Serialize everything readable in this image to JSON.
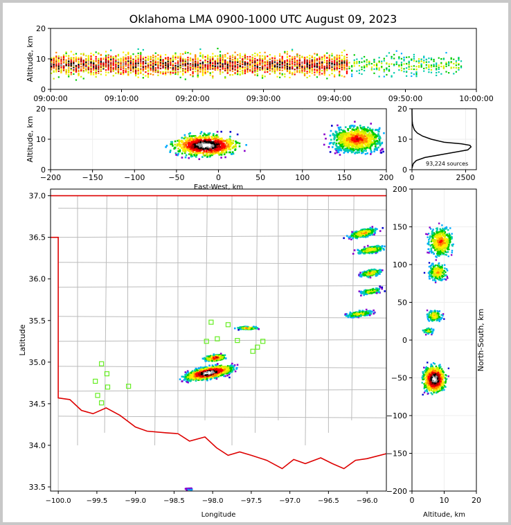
{
  "title": "Oklahoma LMA 0900-1000 UTC August 09, 2023",
  "source_count_label": "93,224 sources",
  "colors": {
    "state_border": "#dd0000",
    "county_lines": "#bbbbbb",
    "station_marker": "#66ee22",
    "density_scale": [
      "#0000cc",
      "#8800cc",
      "#00aaff",
      "#00ccaa",
      "#00cc00",
      "#ccee00",
      "#ffee00",
      "#ff8800",
      "#ff0000",
      "#aa0000",
      "#000000",
      "#999999",
      "#ffffff"
    ]
  },
  "chart_data": [
    {
      "id": "time-height",
      "type": "heatmap",
      "xlabel": "",
      "ylabel": "Altitude, km",
      "x_ticks": [
        "09:00:00",
        "09:10:00",
        "09:20:00",
        "09:30:00",
        "09:40:00",
        "09:50:00",
        "10:00:00"
      ],
      "xlim_minutes": [
        0,
        60
      ],
      "ylim": [
        0,
        20
      ],
      "y_ticks": [
        0,
        10,
        20
      ],
      "description_values": {
        "bulk_altitude_km": [
          4,
          12
        ],
        "activity_end_minute": 58
      }
    },
    {
      "id": "east-west-altitude",
      "type": "heatmap",
      "xlabel": "East-West, km",
      "ylabel": "Altitude, km",
      "xlim": [
        -200,
        200
      ],
      "ylim": [
        0,
        20
      ],
      "x_ticks": [
        -200,
        -150,
        -100,
        -50,
        0,
        50,
        100,
        150,
        200
      ],
      "y_ticks": [
        0,
        10,
        20
      ],
      "clusters": [
        {
          "x_center": -15,
          "x_halfwidth": 45,
          "alt_center": 8,
          "alt_halfwidth": 4,
          "peak": 1.0
        },
        {
          "x_center": 165,
          "x_halfwidth": 35,
          "alt_center": 10,
          "alt_halfwidth": 5,
          "peak": 0.7
        }
      ]
    },
    {
      "id": "altitude-histogram",
      "type": "line",
      "xlabel": "",
      "ylabel": "",
      "xlim": [
        0,
        3000
      ],
      "ylim": [
        0,
        20
      ],
      "x_ticks": [
        0,
        2500
      ],
      "y_ticks": [
        0,
        10,
        20
      ],
      "x": [
        0,
        20,
        60,
        200,
        600,
        1400,
        2200,
        2600,
        2750,
        2700,
        2300,
        1500,
        900,
        500,
        250,
        120,
        60,
        25,
        10,
        3,
        0
      ],
      "y": [
        0.5,
        1,
        2,
        3,
        4,
        5,
        6,
        6.5,
        7.5,
        8,
        8.5,
        9,
        10,
        11,
        12,
        13,
        14,
        15,
        16,
        18,
        20
      ]
    },
    {
      "id": "plan-view",
      "type": "heatmap",
      "xlabel": "Longitude",
      "ylabel": "Latitude",
      "xlim": [
        -100.1,
        -95.75
      ],
      "ylim": [
        33.45,
        37.08
      ],
      "x_ticks": [
        -100.0,
        -99.5,
        -99.0,
        -98.5,
        -98.0,
        -97.5,
        -97.0,
        -96.5,
        -96.0
      ],
      "y_ticks": [
        33.5,
        34.0,
        34.5,
        35.0,
        35.5,
        36.0,
        36.5,
        37.0
      ],
      "stations": [
        [
          -98.02,
          35.48
        ],
        [
          -97.8,
          35.45
        ],
        [
          -98.08,
          35.25
        ],
        [
          -97.94,
          35.28
        ],
        [
          -97.68,
          35.26
        ],
        [
          -97.35,
          35.25
        ],
        [
          -97.42,
          35.18
        ],
        [
          -97.48,
          35.13
        ],
        [
          -99.44,
          34.98
        ],
        [
          -99.37,
          34.86
        ],
        [
          -99.52,
          34.77
        ],
        [
          -99.36,
          34.7
        ],
        [
          -99.09,
          34.71
        ],
        [
          -99.49,
          34.6
        ],
        [
          -99.44,
          34.51
        ]
      ]
    },
    {
      "id": "north-south-altitude",
      "type": "heatmap",
      "xlabel": "Altitude, km",
      "ylabel": "North-South, km",
      "xlim": [
        0,
        20
      ],
      "ylim": [
        -200,
        200
      ],
      "x_ticks": [
        0,
        10,
        20
      ],
      "y_ticks": [
        -200,
        -150,
        -100,
        -50,
        0,
        50,
        100,
        150,
        200
      ]
    }
  ]
}
